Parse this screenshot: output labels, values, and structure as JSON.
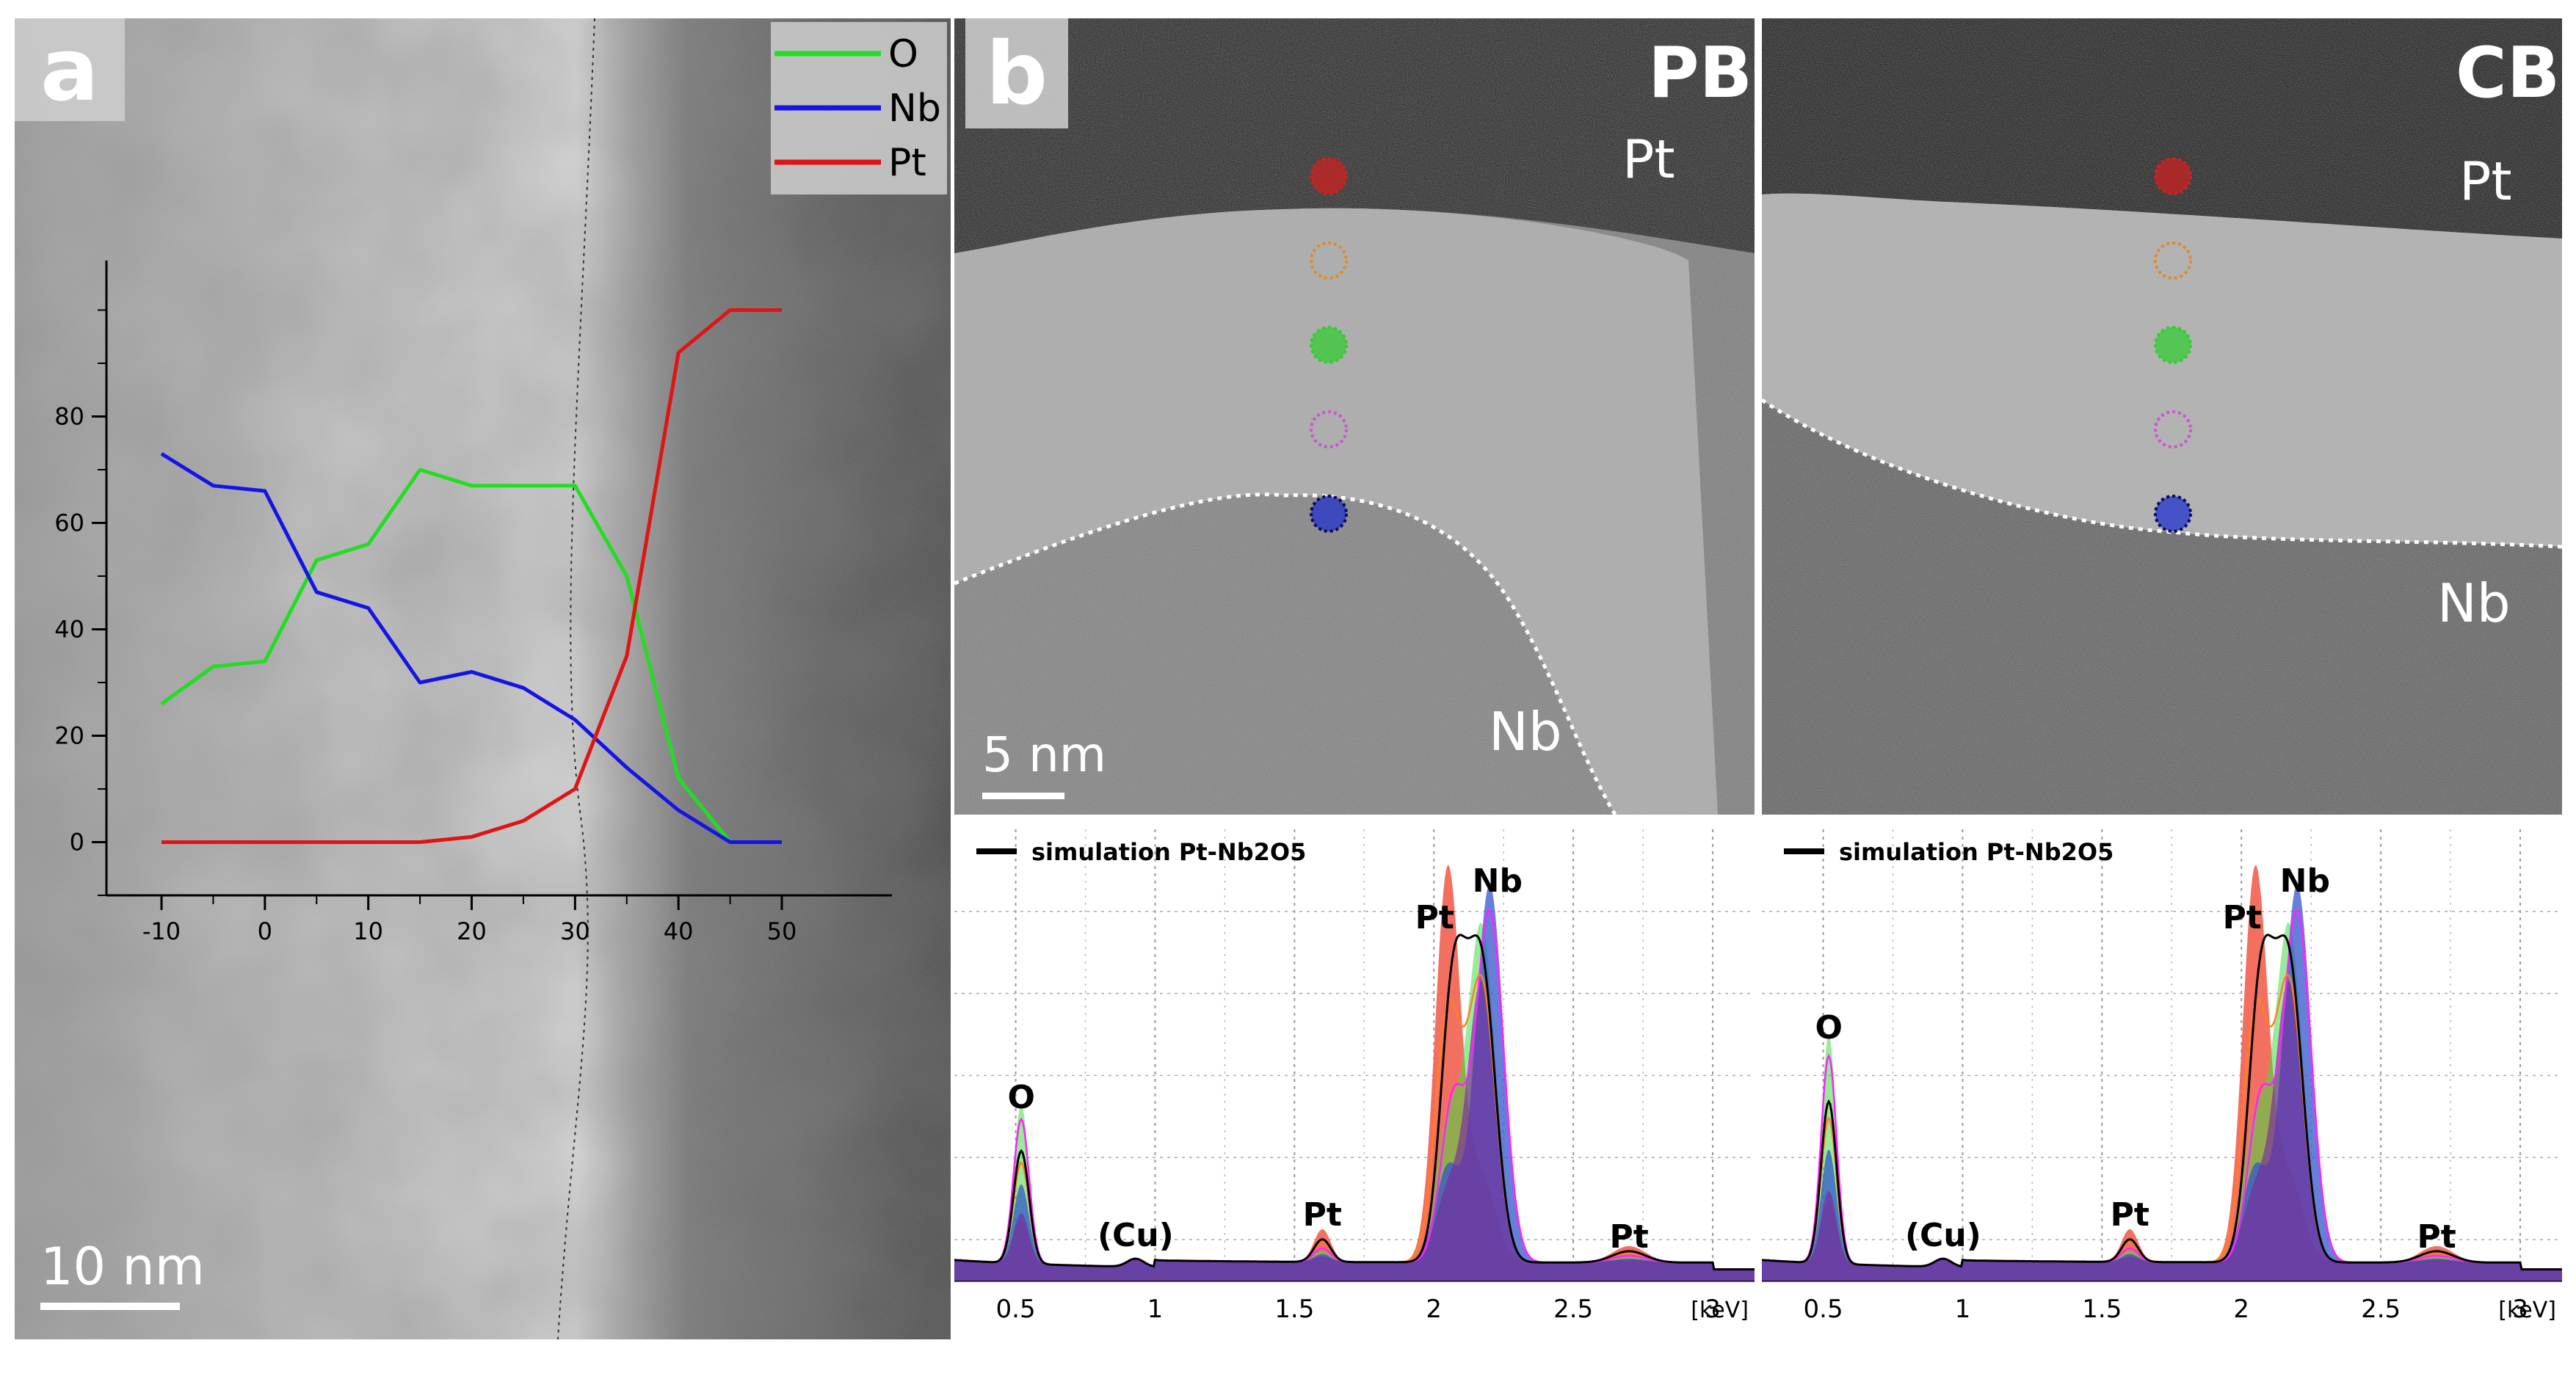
{
  "figure": {
    "panel_a_label": "a",
    "panel_b_label": "b",
    "pb": {
      "title": "PB",
      "pt_label": "Pt",
      "nb_label": "Nb",
      "scale_bar": "5 nm"
    },
    "cb": {
      "title": "CB",
      "pt_label": "Pt",
      "nb_label": "Nb"
    },
    "panel_a_scale_bar": "10 nm"
  },
  "colors": {
    "O": "#22dd22",
    "Nb": "#1414e6",
    "Pt": "#e01414",
    "marker_red": "#cc2222",
    "marker_orange": "#e08a2a",
    "marker_green": "#33cc33",
    "marker_violet": "#cc55cc",
    "marker_blue": "#2233cc"
  },
  "chart_data": [
    {
      "type": "line",
      "title": "",
      "xlabel": "",
      "ylabel": "",
      "x": [
        -10,
        -5,
        0,
        5,
        10,
        15,
        20,
        25,
        30,
        35,
        40,
        45,
        50
      ],
      "xticks": [
        "-10",
        "0",
        "10",
        "20",
        "30",
        "40",
        "50"
      ],
      "yticks": [
        "0",
        "20",
        "40",
        "60",
        "80"
      ],
      "xlim": [
        -10,
        50
      ],
      "ylim": [
        -10,
        110
      ],
      "legend_position": "top-right",
      "series": [
        {
          "name": "O",
          "values": [
            26,
            33,
            34,
            53,
            56,
            70,
            67,
            67,
            67,
            50,
            12,
            0,
            0
          ]
        },
        {
          "name": "Nb",
          "values": [
            73,
            67,
            66,
            47,
            44,
            30,
            32,
            29,
            23,
            14,
            6,
            0,
            0
          ]
        },
        {
          "name": "Pt",
          "values": [
            0,
            0,
            0,
            0,
            0,
            0,
            1,
            4,
            10,
            35,
            92,
            100,
            100
          ]
        }
      ]
    },
    {
      "type": "area",
      "panel": "PB",
      "legend": "simulation Pt-Nb2O5",
      "xticks": [
        "0.5",
        "1",
        "1.5",
        "2",
        "2.5",
        "3"
      ],
      "x_unit": "[keV]",
      "xlim": [
        0.28,
        3.15
      ],
      "peak_labels": [
        "O",
        "(Cu)",
        "Pt",
        "Pt",
        "Nb",
        "Pt"
      ],
      "peaks": [
        {
          "name": "O",
          "energy": 0.52
        },
        {
          "name": "(Cu)",
          "energy": 0.93
        },
        {
          "name": "Pt",
          "energy": 1.6
        },
        {
          "name": "Pt",
          "energy": 2.05
        },
        {
          "name": "Nb",
          "energy": 2.17
        },
        {
          "name": "Pt",
          "energy": 2.7
        }
      ]
    },
    {
      "type": "area",
      "panel": "CB",
      "legend": "simulation Pt-Nb2O5",
      "xticks": [
        "0.5",
        "1",
        "1.5",
        "2",
        "2.5",
        "3"
      ],
      "x_unit": "[keV]",
      "xlim": [
        0.28,
        3.15
      ],
      "peak_labels": [
        "O",
        "(Cu)",
        "Pt",
        "Pt",
        "Nb",
        "Pt"
      ],
      "peaks": [
        {
          "name": "O",
          "energy": 0.52
        },
        {
          "name": "(Cu)",
          "energy": 0.93
        },
        {
          "name": "Pt",
          "energy": 1.6
        },
        {
          "name": "Pt",
          "energy": 2.05
        },
        {
          "name": "Nb",
          "energy": 2.17
        },
        {
          "name": "Pt",
          "energy": 2.7
        }
      ]
    }
  ]
}
